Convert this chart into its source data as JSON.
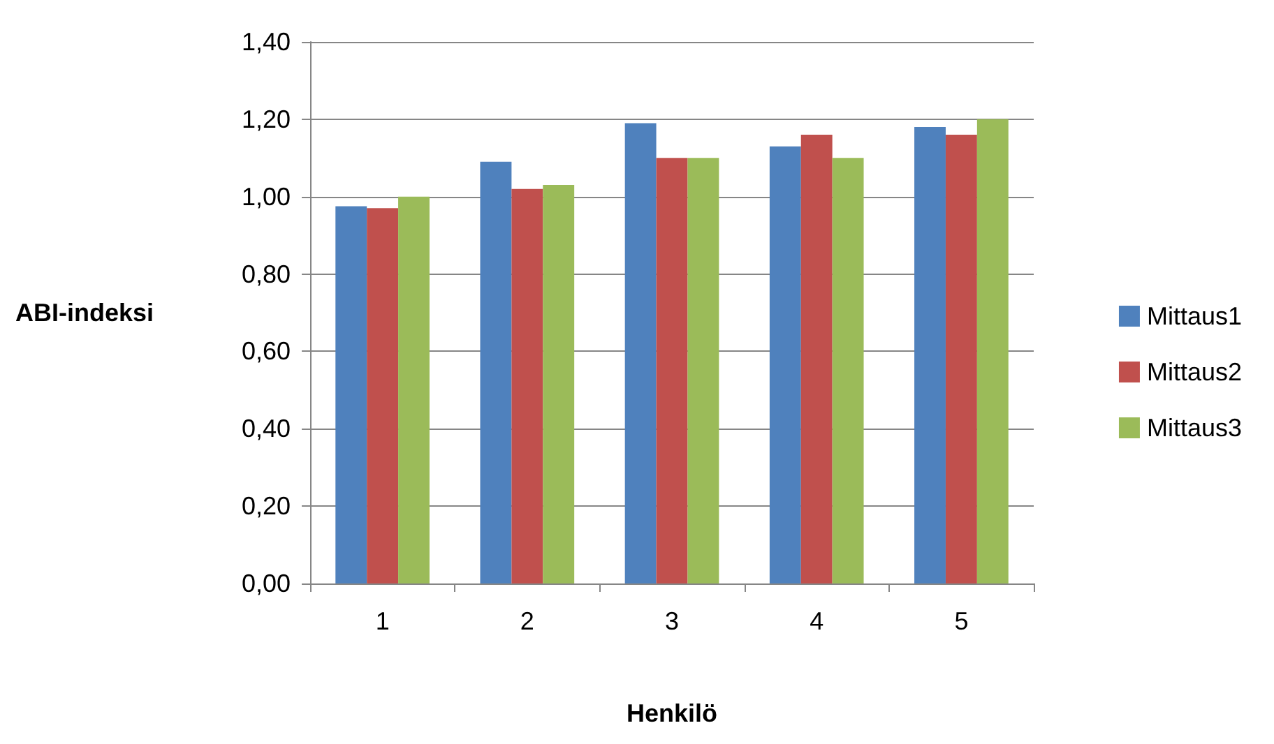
{
  "chart_data": {
    "type": "bar",
    "xlabel": "Henkilö",
    "ylabel": "ABI-indeksi",
    "categories": [
      "1",
      "2",
      "3",
      "4",
      "5"
    ],
    "series": [
      {
        "name": "Mittaus1",
        "color": "#4f81bd",
        "values": [
          0.975,
          1.09,
          1.19,
          1.13,
          1.18
        ]
      },
      {
        "name": "Mittaus2",
        "color": "#c0504d",
        "values": [
          0.97,
          1.02,
          1.1,
          1.16,
          1.16
        ]
      },
      {
        "name": "Mittaus3",
        "color": "#9bbb59",
        "values": [
          1.0,
          1.03,
          1.1,
          1.1,
          1.2
        ]
      }
    ],
    "ylim": [
      0,
      1.4
    ],
    "yticks": [
      {
        "value": 0,
        "label": "0,00"
      },
      {
        "value": 0.2,
        "label": "0,20"
      },
      {
        "value": 0.4,
        "label": "0,40"
      },
      {
        "value": 0.6,
        "label": "0,60"
      },
      {
        "value": 0.8,
        "label": "0,80"
      },
      {
        "value": 1.0,
        "label": "1,00"
      },
      {
        "value": 1.2,
        "label": "1,20"
      },
      {
        "value": 1.4,
        "label": "1,40"
      }
    ],
    "grid": "y",
    "legend": "right"
  }
}
